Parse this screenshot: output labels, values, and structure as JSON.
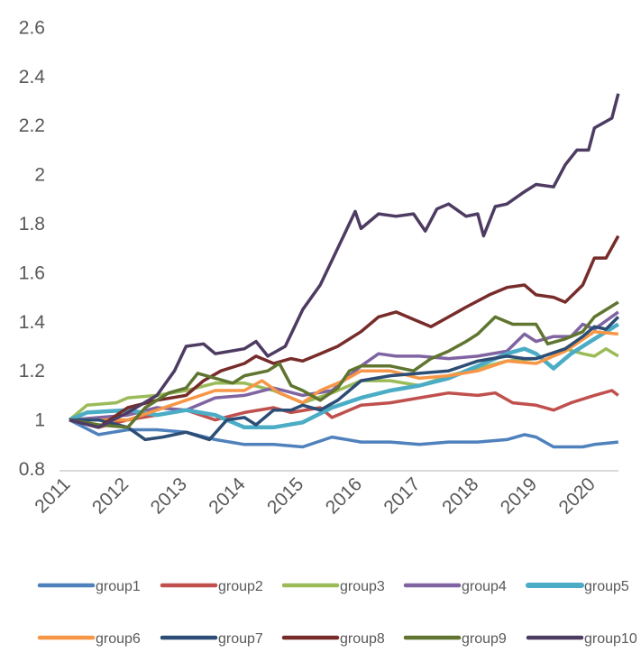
{
  "chart_data": {
    "type": "line",
    "title": "",
    "xlabel": "",
    "ylabel": "",
    "ylim": [
      0.8,
      2.6
    ],
    "yticks": [
      "0.8",
      "1",
      "1.2",
      "1.4",
      "1.6",
      "1.8",
      "2",
      "2.2",
      "2.4",
      "2.6"
    ],
    "xlim": [
      2011,
      2020.41
    ],
    "xticks": [
      "2011",
      "2012",
      "2013",
      "2014",
      "2015",
      "2016",
      "2017",
      "2018",
      "2019",
      "2020"
    ],
    "grid": false,
    "legend": "bottom",
    "series": [
      {
        "name": "group1",
        "color": "#4F81BD",
        "points": [
          [
            2011,
            1.0
          ],
          [
            2011.5,
            0.94
          ],
          [
            2012,
            0.96
          ],
          [
            2012.5,
            0.96
          ],
          [
            2013,
            0.95
          ],
          [
            2013.5,
            0.92
          ],
          [
            2014,
            0.9
          ],
          [
            2014.5,
            0.9
          ],
          [
            2015,
            0.89
          ],
          [
            2015.5,
            0.93
          ],
          [
            2016,
            0.91
          ],
          [
            2016.5,
            0.91
          ],
          [
            2017,
            0.9
          ],
          [
            2017.5,
            0.91
          ],
          [
            2018,
            0.91
          ],
          [
            2018.5,
            0.92
          ],
          [
            2018.8,
            0.94
          ],
          [
            2019,
            0.93
          ],
          [
            2019.3,
            0.89
          ],
          [
            2019.8,
            0.89
          ],
          [
            2020,
            0.9
          ],
          [
            2020.41,
            0.91
          ]
        ]
      },
      {
        "name": "group2",
        "color": "#C0504D",
        "points": [
          [
            2011,
            1.0
          ],
          [
            2011.5,
            0.97
          ],
          [
            2012,
            1.0
          ],
          [
            2012.5,
            1.02
          ],
          [
            2013,
            1.04
          ],
          [
            2013.5,
            1.0
          ],
          [
            2014,
            1.03
          ],
          [
            2014.5,
            1.05
          ],
          [
            2014.8,
            1.03
          ],
          [
            2015.3,
            1.05
          ],
          [
            2015.5,
            1.01
          ],
          [
            2016,
            1.06
          ],
          [
            2016.5,
            1.07
          ],
          [
            2017,
            1.09
          ],
          [
            2017.5,
            1.11
          ],
          [
            2018,
            1.1
          ],
          [
            2018.3,
            1.11
          ],
          [
            2018.6,
            1.07
          ],
          [
            2019,
            1.06
          ],
          [
            2019.3,
            1.04
          ],
          [
            2019.6,
            1.07
          ],
          [
            2020,
            1.1
          ],
          [
            2020.3,
            1.12
          ],
          [
            2020.41,
            1.1
          ]
        ]
      },
      {
        "name": "group3",
        "color": "#9BBB59",
        "points": [
          [
            2011,
            1.0
          ],
          [
            2011.3,
            1.06
          ],
          [
            2011.8,
            1.07
          ],
          [
            2012,
            1.09
          ],
          [
            2012.5,
            1.1
          ],
          [
            2013,
            1.12
          ],
          [
            2013.5,
            1.15
          ],
          [
            2014,
            1.15
          ],
          [
            2014.5,
            1.12
          ],
          [
            2015,
            1.07
          ],
          [
            2015.5,
            1.11
          ],
          [
            2016,
            1.16
          ],
          [
            2016.5,
            1.16
          ],
          [
            2017,
            1.14
          ],
          [
            2017.5,
            1.18
          ],
          [
            2018,
            1.21
          ],
          [
            2018.5,
            1.24
          ],
          [
            2019,
            1.25
          ],
          [
            2019.5,
            1.29
          ],
          [
            2019.8,
            1.27
          ],
          [
            2020,
            1.26
          ],
          [
            2020.2,
            1.29
          ],
          [
            2020.41,
            1.26
          ]
        ]
      },
      {
        "name": "group4",
        "color": "#8064A2",
        "points": [
          [
            2011,
            1.0
          ],
          [
            2012,
            1.02
          ],
          [
            2012.5,
            1.05
          ],
          [
            2013,
            1.04
          ],
          [
            2013.5,
            1.09
          ],
          [
            2014,
            1.1
          ],
          [
            2014.5,
            1.13
          ],
          [
            2015,
            1.1
          ],
          [
            2015.5,
            1.12
          ],
          [
            2016,
            1.22
          ],
          [
            2016.3,
            1.27
          ],
          [
            2016.6,
            1.26
          ],
          [
            2017,
            1.26
          ],
          [
            2017.5,
            1.25
          ],
          [
            2018,
            1.26
          ],
          [
            2018.5,
            1.28
          ],
          [
            2018.8,
            1.35
          ],
          [
            2019,
            1.32
          ],
          [
            2019.3,
            1.34
          ],
          [
            2019.6,
            1.34
          ],
          [
            2019.8,
            1.39
          ],
          [
            2020,
            1.37
          ],
          [
            2020.41,
            1.44
          ]
        ]
      },
      {
        "name": "group5",
        "color": "#4BACC6",
        "points": [
          [
            2011,
            1.0
          ],
          [
            2011.3,
            1.03
          ],
          [
            2012,
            1.04
          ],
          [
            2012.5,
            1.02
          ],
          [
            2013,
            1.04
          ],
          [
            2013.5,
            1.02
          ],
          [
            2014,
            0.97
          ],
          [
            2014.5,
            0.97
          ],
          [
            2015,
            0.99
          ],
          [
            2015.5,
            1.05
          ],
          [
            2016,
            1.09
          ],
          [
            2016.5,
            1.12
          ],
          [
            2017,
            1.14
          ],
          [
            2017.5,
            1.17
          ],
          [
            2018,
            1.22
          ],
          [
            2018.5,
            1.27
          ],
          [
            2018.8,
            1.29
          ],
          [
            2019,
            1.27
          ],
          [
            2019.3,
            1.21
          ],
          [
            2019.6,
            1.27
          ],
          [
            2020,
            1.33
          ],
          [
            2020.41,
            1.39
          ]
        ]
      },
      {
        "name": "group6",
        "color": "#F79646",
        "points": [
          [
            2011,
            1.0
          ],
          [
            2012,
            1.0
          ],
          [
            2012.5,
            1.04
          ],
          [
            2013,
            1.08
          ],
          [
            2013.5,
            1.12
          ],
          [
            2014,
            1.12
          ],
          [
            2014.3,
            1.16
          ],
          [
            2014.6,
            1.11
          ],
          [
            2015,
            1.07
          ],
          [
            2015.3,
            1.12
          ],
          [
            2015.7,
            1.16
          ],
          [
            2016,
            1.2
          ],
          [
            2016.5,
            1.2
          ],
          [
            2017,
            1.17
          ],
          [
            2017.5,
            1.18
          ],
          [
            2018,
            1.2
          ],
          [
            2018.5,
            1.24
          ],
          [
            2019,
            1.23
          ],
          [
            2019.5,
            1.28
          ],
          [
            2020,
            1.36
          ],
          [
            2020.41,
            1.35
          ]
        ]
      },
      {
        "name": "group7",
        "color": "#2C4D75",
        "points": [
          [
            2011,
            1.0
          ],
          [
            2011.5,
            1.0
          ],
          [
            2012,
            0.97
          ],
          [
            2012.3,
            0.92
          ],
          [
            2012.6,
            0.93
          ],
          [
            2013,
            0.95
          ],
          [
            2013.4,
            0.92
          ],
          [
            2013.7,
            1.0
          ],
          [
            2014,
            1.01
          ],
          [
            2014.2,
            0.98
          ],
          [
            2014.5,
            1.04
          ],
          [
            2014.8,
            1.04
          ],
          [
            2015,
            1.06
          ],
          [
            2015.3,
            1.04
          ],
          [
            2015.6,
            1.08
          ],
          [
            2016,
            1.16
          ],
          [
            2016.5,
            1.18
          ],
          [
            2017,
            1.19
          ],
          [
            2017.5,
            1.2
          ],
          [
            2018,
            1.24
          ],
          [
            2018.5,
            1.26
          ],
          [
            2018.8,
            1.25
          ],
          [
            2019,
            1.25
          ],
          [
            2019.5,
            1.29
          ],
          [
            2019.8,
            1.34
          ],
          [
            2020,
            1.38
          ],
          [
            2020.2,
            1.37
          ],
          [
            2020.41,
            1.42
          ]
        ]
      },
      {
        "name": "group8",
        "color": "#772C2A",
        "points": [
          [
            2011,
            1.0
          ],
          [
            2011.5,
            0.97
          ],
          [
            2012,
            1.05
          ],
          [
            2012.5,
            1.08
          ],
          [
            2013,
            1.1
          ],
          [
            2013.3,
            1.16
          ],
          [
            2013.6,
            1.2
          ],
          [
            2014,
            1.23
          ],
          [
            2014.2,
            1.26
          ],
          [
            2014.5,
            1.23
          ],
          [
            2014.8,
            1.25
          ],
          [
            2015,
            1.24
          ],
          [
            2015.3,
            1.27
          ],
          [
            2015.6,
            1.3
          ],
          [
            2016,
            1.36
          ],
          [
            2016.3,
            1.42
          ],
          [
            2016.6,
            1.44
          ],
          [
            2016.9,
            1.41
          ],
          [
            2017.2,
            1.38
          ],
          [
            2017.5,
            1.42
          ],
          [
            2017.8,
            1.46
          ],
          [
            2018.2,
            1.51
          ],
          [
            2018.5,
            1.54
          ],
          [
            2018.8,
            1.55
          ],
          [
            2019,
            1.51
          ],
          [
            2019.3,
            1.5
          ],
          [
            2019.5,
            1.48
          ],
          [
            2019.8,
            1.55
          ],
          [
            2020,
            1.66
          ],
          [
            2020.2,
            1.66
          ],
          [
            2020.41,
            1.75
          ]
        ]
      },
      {
        "name": "group9",
        "color": "#5F7530",
        "points": [
          [
            2011,
            1.0
          ],
          [
            2011.5,
            0.98
          ],
          [
            2012,
            0.97
          ],
          [
            2012.3,
            1.05
          ],
          [
            2012.7,
            1.11
          ],
          [
            2013,
            1.13
          ],
          [
            2013.2,
            1.19
          ],
          [
            2013.5,
            1.17
          ],
          [
            2013.8,
            1.15
          ],
          [
            2014,
            1.18
          ],
          [
            2014.4,
            1.2
          ],
          [
            2014.6,
            1.23
          ],
          [
            2014.8,
            1.14
          ],
          [
            2015,
            1.12
          ],
          [
            2015.3,
            1.08
          ],
          [
            2015.6,
            1.13
          ],
          [
            2015.8,
            1.2
          ],
          [
            2016,
            1.22
          ],
          [
            2016.5,
            1.22
          ],
          [
            2016.9,
            1.2
          ],
          [
            2017.2,
            1.25
          ],
          [
            2017.5,
            1.28
          ],
          [
            2017.8,
            1.32
          ],
          [
            2018,
            1.35
          ],
          [
            2018.3,
            1.42
          ],
          [
            2018.6,
            1.39
          ],
          [
            2019,
            1.39
          ],
          [
            2019.2,
            1.31
          ],
          [
            2019.5,
            1.33
          ],
          [
            2019.8,
            1.36
          ],
          [
            2020,
            1.42
          ],
          [
            2020.41,
            1.48
          ]
        ]
      },
      {
        "name": "group10",
        "color": "#4D3B62",
        "points": [
          [
            2011,
            1.0
          ],
          [
            2011.5,
            0.97
          ],
          [
            2012,
            1.03
          ],
          [
            2012.5,
            1.1
          ],
          [
            2012.8,
            1.2
          ],
          [
            2013,
            1.3
          ],
          [
            2013.3,
            1.31
          ],
          [
            2013.5,
            1.27
          ],
          [
            2014,
            1.29
          ],
          [
            2014.2,
            1.32
          ],
          [
            2014.4,
            1.26
          ],
          [
            2014.7,
            1.3
          ],
          [
            2015,
            1.45
          ],
          [
            2015.3,
            1.55
          ],
          [
            2015.5,
            1.65
          ],
          [
            2015.7,
            1.75
          ],
          [
            2015.9,
            1.85
          ],
          [
            2016,
            1.78
          ],
          [
            2016.3,
            1.84
          ],
          [
            2016.6,
            1.83
          ],
          [
            2016.9,
            1.84
          ],
          [
            2017.1,
            1.77
          ],
          [
            2017.3,
            1.86
          ],
          [
            2017.5,
            1.88
          ],
          [
            2017.8,
            1.83
          ],
          [
            2018,
            1.84
          ],
          [
            2018.1,
            1.75
          ],
          [
            2018.3,
            1.87
          ],
          [
            2018.5,
            1.88
          ],
          [
            2018.8,
            1.93
          ],
          [
            2019,
            1.96
          ],
          [
            2019.3,
            1.95
          ],
          [
            2019.5,
            2.04
          ],
          [
            2019.7,
            2.1
          ],
          [
            2019.9,
            2.1
          ],
          [
            2020,
            2.19
          ],
          [
            2020.3,
            2.23
          ],
          [
            2020.41,
            2.33
          ]
        ]
      }
    ]
  }
}
